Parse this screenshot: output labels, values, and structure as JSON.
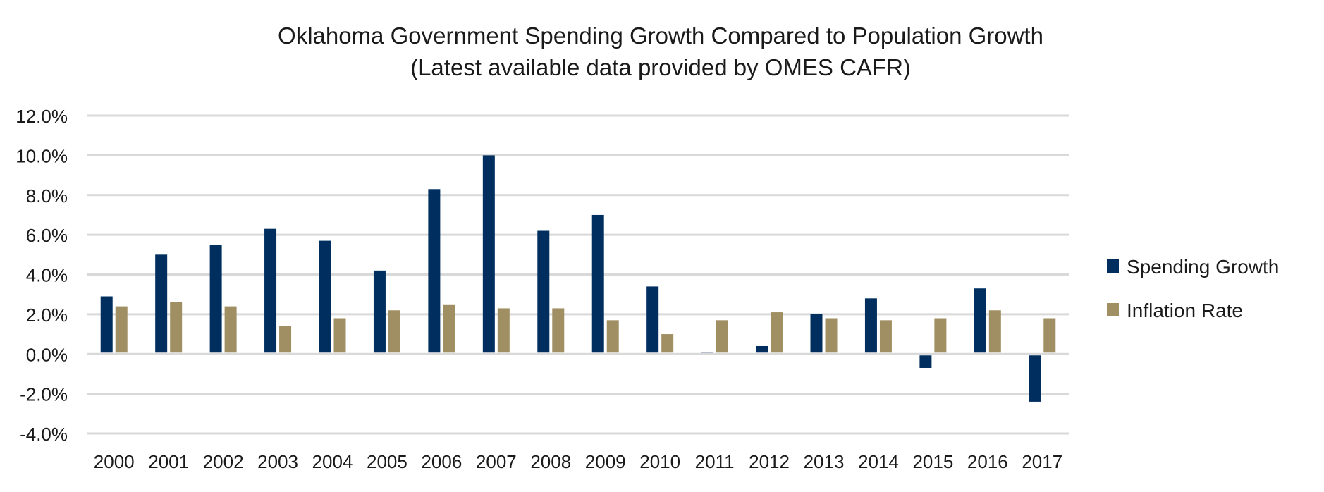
{
  "chart_data": {
    "type": "bar",
    "title": "Oklahoma Government Spending Growth Compared to Population Growth",
    "subtitle": "(Latest available data provided by OMES CAFR)",
    "xlabel": "",
    "ylabel": "",
    "ylim": [
      -4,
      12
    ],
    "yticks": [
      "12.0%",
      "10.0%",
      "8.0%",
      "6.0%",
      "4.0%",
      "2.0%",
      "0.0%",
      "-2.0%",
      "-4.0%"
    ],
    "ytick_values": [
      12,
      10,
      8,
      6,
      4,
      2,
      0,
      -2,
      -4
    ],
    "grid": true,
    "legend_position": "right",
    "categories": [
      "2000",
      "2001",
      "2002",
      "2003",
      "2004",
      "2005",
      "2006",
      "2007",
      "2008",
      "2009",
      "2010",
      "2011",
      "2012",
      "2013",
      "2014",
      "2015",
      "2016",
      "2017"
    ],
    "series": [
      {
        "name": "Spending Growth",
        "color": "#002f5f",
        "values": [
          2.9,
          5.0,
          5.5,
          6.3,
          5.7,
          4.2,
          8.3,
          10.0,
          6.2,
          7.0,
          3.4,
          0.1,
          0.4,
          2.0,
          2.8,
          -0.7,
          3.3,
          -2.4
        ]
      },
      {
        "name": "Inflation Rate",
        "color": "#a08f63",
        "values": [
          2.4,
          2.6,
          2.4,
          1.4,
          1.8,
          2.2,
          2.5,
          2.3,
          2.3,
          1.7,
          1.0,
          1.7,
          2.1,
          1.8,
          1.7,
          1.8,
          2.2,
          1.8
        ]
      }
    ]
  }
}
